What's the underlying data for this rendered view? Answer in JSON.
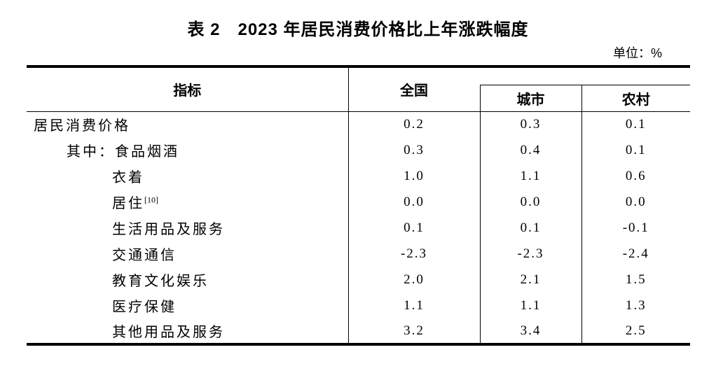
{
  "page": {
    "title": "表 2　2023 年居民消费价格比上年涨跌幅度",
    "unit_label": "单位：%"
  },
  "colors": {
    "text": "#000000",
    "rule": "#000000",
    "background": "#ffffff"
  },
  "table": {
    "headers": {
      "indicator": "指标",
      "national": "全国",
      "urban": "城市",
      "rural": "农村"
    },
    "rows": [
      {
        "label": "居民消费价格",
        "national": "0.2",
        "urban": "0.3",
        "rural": "0.1"
      },
      {
        "label": "其中：食品烟酒",
        "national": "0.3",
        "urban": "0.4",
        "rural": "0.1"
      },
      {
        "label": "衣着",
        "national": "1.0",
        "urban": "1.1",
        "rural": "0.6"
      },
      {
        "label": "居住",
        "sup": "[10]",
        "national": "0.0",
        "urban": "0.0",
        "rural": "0.0"
      },
      {
        "label": "生活用品及服务",
        "national": "0.1",
        "urban": "0.1",
        "rural": "-0.1"
      },
      {
        "label": "交通通信",
        "national": "-2.3",
        "urban": "-2.3",
        "rural": "-2.4"
      },
      {
        "label": "教育文化娱乐",
        "national": "2.0",
        "urban": "2.1",
        "rural": "1.5"
      },
      {
        "label": "医疗保健",
        "national": "1.1",
        "urban": "1.1",
        "rural": "1.3"
      },
      {
        "label": "其他用品及服务",
        "national": "3.2",
        "urban": "3.4",
        "rural": "2.5"
      }
    ]
  }
}
